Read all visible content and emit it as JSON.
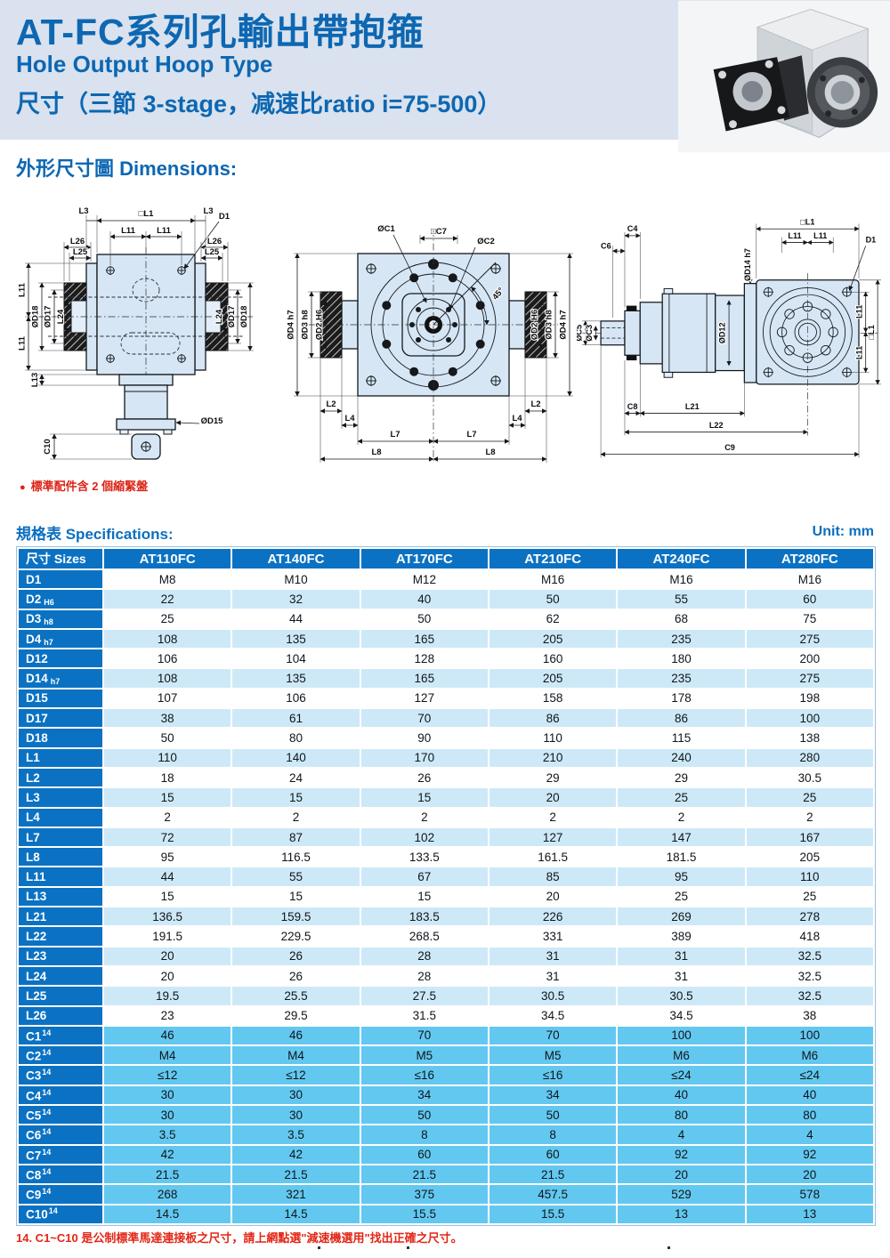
{
  "page": {
    "title_zh": "AT-FC系列孔輸出帶抱箍",
    "title_en": "Hole Output Hoop Type",
    "subtitle": "尺寸（三節 3-stage，减速比ratio i=75-500）",
    "dimensions_heading": "外形尺寸圖 Dimensions:",
    "spec_heading": "規格表 Specifications:",
    "unit_label": "Unit: mm",
    "accessory_bullet": "●",
    "accessory_note": "標準配件含 2 個縮緊盤",
    "footnote": "14. C1~C10 是公制標準馬達連接板之尺寸，請上網點選\"減速機選用\"找出正確之尺寸。"
  },
  "colors": {
    "accent_blue": "#0d67b2",
    "table_header_blue": "#0b72c3",
    "row_light_blue": "#cde9f8",
    "row_cyan": "#63c8f0",
    "note_red": "#e22616",
    "band_bg": "#d9e2ee",
    "drawing_fill": "#d6e6f4"
  },
  "drawings": {
    "d1": {
      "labels": [
        "L3",
        "□L1",
        "L3",
        "D1",
        "L11",
        "L11",
        "L26",
        "L25",
        "L26",
        "L25",
        "L11",
        "L11",
        "ØD18",
        "ØD17",
        "L24",
        "L24",
        "ØD17",
        "ØD18",
        "L13",
        "ØD15",
        "C10"
      ]
    },
    "d2": {
      "labels": [
        "ØC1",
        "□C7",
        "ØC2",
        "45°",
        "ØD4 h7",
        "ØD3 h8",
        "ØD2 H6",
        "ØD2 H6",
        "ØD3 h8",
        "ØD4 h7",
        "L2",
        "L4",
        "L4",
        "L2",
        "L7",
        "L7",
        "L8",
        "L8"
      ]
    },
    "d3": {
      "labels": [
        "C4",
        "C6",
        "ØC5",
        "ØC3",
        "ØD12",
        "ØD14 h7",
        "□L1",
        "L11",
        "L11",
        "D1",
        "L11",
        "□L1",
        "L11",
        "C8",
        "L21",
        "L22",
        "C9"
      ]
    }
  },
  "table": {
    "size_header": "尺寸 Sizes",
    "columns": [
      "AT110FC",
      "AT140FC",
      "AT170FC",
      "AT210FC",
      "AT240FC",
      "AT280FC"
    ],
    "rows": [
      {
        "label": "D1",
        "sub": "",
        "sup": "",
        "band": "white",
        "cells": [
          "M8",
          "M10",
          "M12",
          "M16",
          "M16",
          "M16"
        ]
      },
      {
        "label": "D2",
        "sub": "H6",
        "sup": "",
        "band": "light",
        "cells": [
          "22",
          "32",
          "40",
          "50",
          "55",
          "60"
        ]
      },
      {
        "label": "D3",
        "sub": "h8",
        "sup": "",
        "band": "white",
        "cells": [
          "25",
          "44",
          "50",
          "62",
          "68",
          "75"
        ]
      },
      {
        "label": "D4",
        "sub": "h7",
        "sup": "",
        "band": "light",
        "cells": [
          "108",
          "135",
          "165",
          "205",
          "235",
          "275"
        ]
      },
      {
        "label": "D12",
        "sub": "",
        "sup": "",
        "band": "white",
        "cells": [
          "106",
          "104",
          "128",
          "160",
          "180",
          "200"
        ]
      },
      {
        "label": "D14",
        "sub": "h7",
        "sup": "",
        "band": "light",
        "cells": [
          "108",
          "135",
          "165",
          "205",
          "235",
          "275"
        ]
      },
      {
        "label": "D15",
        "sub": "",
        "sup": "",
        "band": "white",
        "cells": [
          "107",
          "106",
          "127",
          "158",
          "178",
          "198"
        ]
      },
      {
        "label": "D17",
        "sub": "",
        "sup": "",
        "band": "light",
        "cells": [
          "38",
          "61",
          "70",
          "86",
          "86",
          "100"
        ]
      },
      {
        "label": "D18",
        "sub": "",
        "sup": "",
        "band": "white",
        "cells": [
          "50",
          "80",
          "90",
          "110",
          "115",
          "138"
        ]
      },
      {
        "label": "L1",
        "sub": "",
        "sup": "",
        "band": "light",
        "cells": [
          "110",
          "140",
          "170",
          "210",
          "240",
          "280"
        ]
      },
      {
        "label": "L2",
        "sub": "",
        "sup": "",
        "band": "white",
        "cells": [
          "18",
          "24",
          "26",
          "29",
          "29",
          "30.5"
        ]
      },
      {
        "label": "L3",
        "sub": "",
        "sup": "",
        "band": "light",
        "cells": [
          "15",
          "15",
          "15",
          "20",
          "25",
          "25"
        ]
      },
      {
        "label": "L4",
        "sub": "",
        "sup": "",
        "band": "white",
        "cells": [
          "2",
          "2",
          "2",
          "2",
          "2",
          "2"
        ]
      },
      {
        "label": "L7",
        "sub": "",
        "sup": "",
        "band": "light",
        "cells": [
          "72",
          "87",
          "102",
          "127",
          "147",
          "167"
        ]
      },
      {
        "label": "L8",
        "sub": "",
        "sup": "",
        "band": "white",
        "cells": [
          "95",
          "116.5",
          "133.5",
          "161.5",
          "181.5",
          "205"
        ]
      },
      {
        "label": "L11",
        "sub": "",
        "sup": "",
        "band": "light",
        "cells": [
          "44",
          "55",
          "67",
          "85",
          "95",
          "110"
        ]
      },
      {
        "label": "L13",
        "sub": "",
        "sup": "",
        "band": "white",
        "cells": [
          "15",
          "15",
          "15",
          "20",
          "25",
          "25"
        ]
      },
      {
        "label": "L21",
        "sub": "",
        "sup": "",
        "band": "light",
        "cells": [
          "136.5",
          "159.5",
          "183.5",
          "226",
          "269",
          "278"
        ]
      },
      {
        "label": "L22",
        "sub": "",
        "sup": "",
        "band": "white",
        "cells": [
          "191.5",
          "229.5",
          "268.5",
          "331",
          "389",
          "418"
        ]
      },
      {
        "label": "L23",
        "sub": "",
        "sup": "",
        "band": "light",
        "cells": [
          "20",
          "26",
          "28",
          "31",
          "31",
          "32.5"
        ]
      },
      {
        "label": "L24",
        "sub": "",
        "sup": "",
        "band": "white",
        "cells": [
          "20",
          "26",
          "28",
          "31",
          "31",
          "32.5"
        ]
      },
      {
        "label": "L25",
        "sub": "",
        "sup": "",
        "band": "light",
        "cells": [
          "19.5",
          "25.5",
          "27.5",
          "30.5",
          "30.5",
          "32.5"
        ]
      },
      {
        "label": "L26",
        "sub": "",
        "sup": "",
        "band": "white",
        "cells": [
          "23",
          "29.5",
          "31.5",
          "34.5",
          "34.5",
          "38"
        ]
      },
      {
        "label": "C1",
        "sub": "",
        "sup": "14",
        "band": "cyan",
        "cells": [
          "46",
          "46",
          "70",
          "70",
          "100",
          "100"
        ]
      },
      {
        "label": "C2",
        "sub": "",
        "sup": "14",
        "band": "cyan",
        "cells": [
          "M4",
          "M4",
          "M5",
          "M5",
          "M6",
          "M6"
        ]
      },
      {
        "label": "C3",
        "sub": "",
        "sup": "14",
        "band": "cyan",
        "cells": [
          "≤12",
          "≤12",
          "≤16",
          "≤16",
          "≤24",
          "≤24"
        ]
      },
      {
        "label": "C4",
        "sub": "",
        "sup": "14",
        "band": "cyan",
        "cells": [
          "30",
          "30",
          "34",
          "34",
          "40",
          "40"
        ]
      },
      {
        "label": "C5",
        "sub": "",
        "sup": "14",
        "band": "cyan",
        "cells": [
          "30",
          "30",
          "50",
          "50",
          "80",
          "80"
        ]
      },
      {
        "label": "C6",
        "sub": "",
        "sup": "14",
        "band": "cyan",
        "cells": [
          "3.5",
          "3.5",
          "8",
          "8",
          "4",
          "4"
        ]
      },
      {
        "label": "C7",
        "sub": "",
        "sup": "14",
        "band": "cyan",
        "cells": [
          "42",
          "42",
          "60",
          "60",
          "92",
          "92"
        ]
      },
      {
        "label": "C8",
        "sub": "",
        "sup": "14",
        "band": "cyan",
        "cells": [
          "21.5",
          "21.5",
          "21.5",
          "21.5",
          "20",
          "20"
        ]
      },
      {
        "label": "C9",
        "sub": "",
        "sup": "14",
        "band": "cyan",
        "cells": [
          "268",
          "321",
          "375",
          "457.5",
          "529",
          "578"
        ]
      },
      {
        "label": "C10",
        "sub": "",
        "sup": "14",
        "band": "cyan",
        "cells": [
          "14.5",
          "14.5",
          "15.5",
          "15.5",
          "13",
          "13"
        ]
      }
    ]
  }
}
